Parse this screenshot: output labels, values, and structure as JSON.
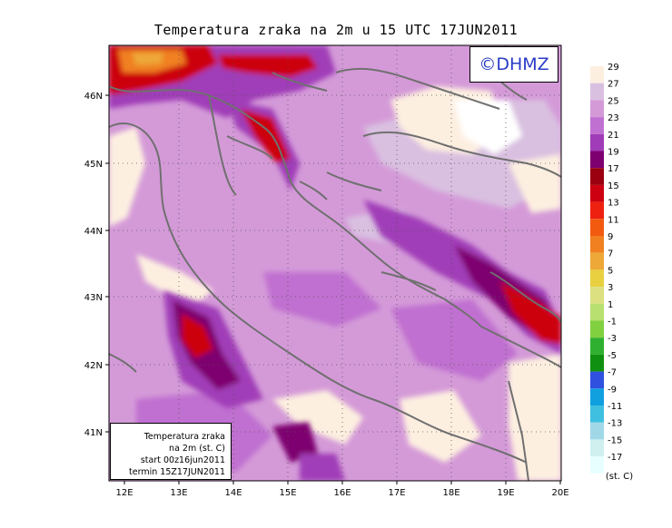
{
  "title": "Temperatura zraka na 2m u 15 UTC 17JUN2011",
  "copyright": "©DHMZ",
  "info_box": {
    "line1": "Temperatura zraka",
    "line2": "na 2m (st. C)",
    "line3": "start 00z16jun2011",
    "line4": "termin 15Z17JUN2011"
  },
  "axes": {
    "lon_labels": [
      "12E",
      "13E",
      "14E",
      "15E",
      "16E",
      "17E",
      "18E",
      "19E",
      "20E"
    ],
    "lat_labels": [
      "46N",
      "45N",
      "44N",
      "43N",
      "42N",
      "41N"
    ]
  },
  "legend": {
    "unit": "(st. C)",
    "labels": [
      "29",
      "27",
      "25",
      "23",
      "21",
      "19",
      "17",
      "15",
      "13",
      "11",
      "9",
      "7",
      "5",
      "3",
      "1",
      "-1",
      "-3",
      "-5",
      "-7",
      "-9",
      "-11",
      "-13",
      "-15",
      "-17"
    ],
    "colors": [
      "#fdefe0",
      "#d9c0e0",
      "#d49ad8",
      "#c070d0",
      "#a03cb8",
      "#7e0070",
      "#9a0010",
      "#cc0010",
      "#ee2010",
      "#f25a10",
      "#f08020",
      "#eea838",
      "#e8d040",
      "#dce080",
      "#b8e070",
      "#80d040",
      "#30b030",
      "#109010",
      "#3050e0",
      "#10a0e0",
      "#40c0e0",
      "#a0d8e8",
      "#d0f0f0",
      "#e8ffff"
    ]
  },
  "icons": {
    "map_field": "temperature-field-map",
    "coastline": "coastline-lines"
  }
}
